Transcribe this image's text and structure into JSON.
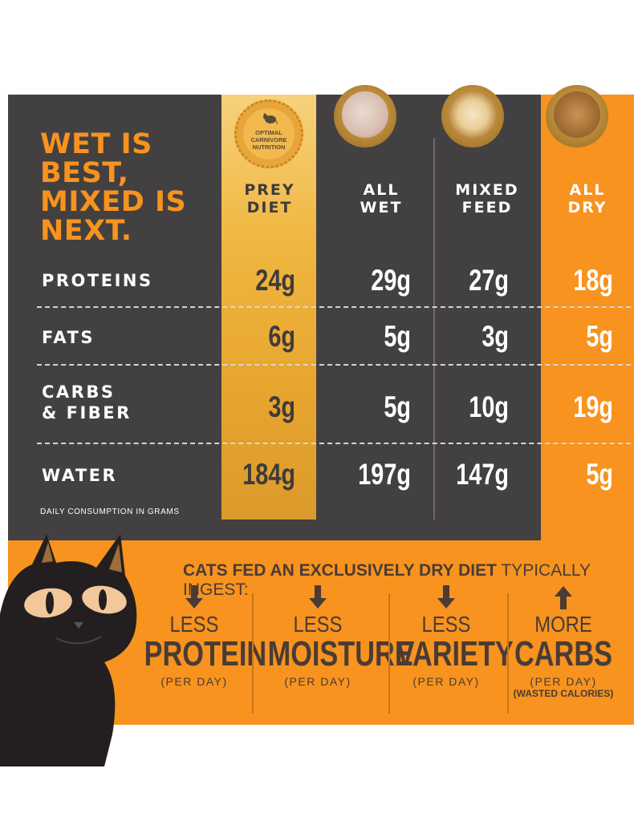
{
  "headline": "WET IS BEST, MIXED IS NEXT.",
  "badge": {
    "text": "OPTIMAL\nCARNIVORE\nNUTRITION",
    "icon": "mouse-icon"
  },
  "columns": [
    {
      "key": "prey",
      "label": "PREY\nDIET"
    },
    {
      "key": "wet",
      "label": "ALL\nWET"
    },
    {
      "key": "mixed",
      "label": "MIXED\nFEED"
    },
    {
      "key": "dry",
      "label": "ALL\nDRY"
    }
  ],
  "rows": [
    {
      "label": "PROTEINS",
      "prey": "24g",
      "wet": "29g",
      "mixed": "27g",
      "dry": "18g"
    },
    {
      "label": "FATS",
      "prey": "6g",
      "wet": "5g",
      "mixed": "3g",
      "dry": "5g"
    },
    {
      "label": "CARBS\n& FIBER",
      "prey": "3g",
      "wet": "5g",
      "mixed": "10g",
      "dry": "19g"
    },
    {
      "label": "WATER",
      "prey": "184g",
      "wet": "197g",
      "mixed": "147g",
      "dry": "5g"
    }
  ],
  "footnote": "DAILY CONSUMPTION IN GRAMS",
  "bottom": {
    "title_bold": "CATS FED AN EXCLUSIVELY DRY DIET",
    "title_light": " TYPICALLY INGEST:",
    "stats": [
      {
        "direction": "down",
        "small": "LESS",
        "big": "PROTEIN",
        "per": "(PER DAY)",
        "extra": ""
      },
      {
        "direction": "down",
        "small": "LESS",
        "big": "MOISTURE",
        "per": "(PER DAY)",
        "extra": ""
      },
      {
        "direction": "down",
        "small": "LESS",
        "big": "VARIETY",
        "per": "(PER DAY)",
        "extra": ""
      },
      {
        "direction": "up",
        "small": "MORE",
        "big": "CARBS",
        "per": "(PER DAY)",
        "extra": "(WASTED CALORIES)"
      }
    ]
  },
  "colors": {
    "dark": "#434041",
    "orange": "#f7931e",
    "gold": "#f0b640",
    "brown": "#4a3b35"
  }
}
